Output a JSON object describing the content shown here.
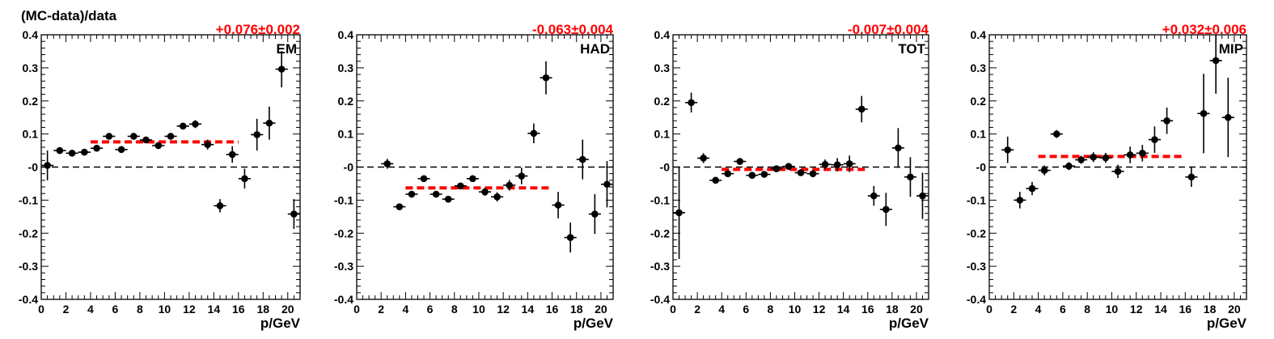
{
  "figure": {
    "ylabel": "(MC-data)/data",
    "colors": {
      "points": "#000000",
      "fit_line": "#ff0000",
      "annotation": "#ff0000",
      "zero_line": "#000000"
    }
  },
  "chart_data": [
    {
      "type": "scatter",
      "panel_label": "EM",
      "annotation": "+0.076±0.002",
      "xlabel": "p/GeV",
      "xlim": [
        0,
        21
      ],
      "ylim": [
        -0.4,
        0.4
      ],
      "x_ticks": [
        "0",
        "2",
        "4",
        "6",
        "8",
        "10",
        "12",
        "14",
        "16",
        "18",
        "20"
      ],
      "y_ticks": [
        "0.4",
        "0.3",
        "0.2",
        "0.1",
        "-0",
        "-0.1",
        "-0.2",
        "-0.3",
        "-0.4"
      ],
      "fit": {
        "value": 0.076,
        "x_range": [
          4,
          16
        ]
      },
      "points": [
        {
          "x": 0.5,
          "y": 0.005,
          "yerr": 0.045
        },
        {
          "x": 1.5,
          "y": 0.05,
          "yerr": 0.006
        },
        {
          "x": 2.5,
          "y": 0.042,
          "yerr": 0.006
        },
        {
          "x": 3.5,
          "y": 0.045,
          "yerr": 0.006
        },
        {
          "x": 4.5,
          "y": 0.057,
          "yerr": 0.006
        },
        {
          "x": 5.5,
          "y": 0.093,
          "yerr": 0.007
        },
        {
          "x": 6.5,
          "y": 0.053,
          "yerr": 0.007
        },
        {
          "x": 7.5,
          "y": 0.093,
          "yerr": 0.007
        },
        {
          "x": 8.5,
          "y": 0.082,
          "yerr": 0.007
        },
        {
          "x": 9.5,
          "y": 0.065,
          "yerr": 0.008
        },
        {
          "x": 10.5,
          "y": 0.093,
          "yerr": 0.008
        },
        {
          "x": 11.5,
          "y": 0.124,
          "yerr": 0.009
        },
        {
          "x": 12.5,
          "y": 0.13,
          "yerr": 0.012
        },
        {
          "x": 13.5,
          "y": 0.068,
          "yerr": 0.015
        },
        {
          "x": 14.5,
          "y": -0.117,
          "yerr": 0.02
        },
        {
          "x": 15.5,
          "y": 0.038,
          "yerr": 0.025
        },
        {
          "x": 16.5,
          "y": -0.035,
          "yerr": 0.03
        },
        {
          "x": 17.5,
          "y": 0.098,
          "yerr": 0.048
        },
        {
          "x": 18.5,
          "y": 0.133,
          "yerr": 0.05
        },
        {
          "x": 19.5,
          "y": 0.296,
          "yerr": 0.055
        },
        {
          "x": 20.5,
          "y": -0.142,
          "yerr": 0.045
        }
      ]
    },
    {
      "type": "scatter",
      "panel_label": "HAD",
      "annotation": "-0.063±0.004",
      "xlabel": "p/GeV",
      "xlim": [
        0,
        21
      ],
      "ylim": [
        -0.4,
        0.4
      ],
      "x_ticks": [
        "0",
        "2",
        "4",
        "6",
        "8",
        "10",
        "12",
        "14",
        "16",
        "18",
        "20"
      ],
      "y_ticks": [
        "0.4",
        "0.3",
        "0.2",
        "0.1",
        "-0",
        "-0.1",
        "-0.2",
        "-0.3",
        "-0.4"
      ],
      "fit": {
        "value": -0.063,
        "x_range": [
          4,
          16
        ]
      },
      "points": [
        {
          "x": 2.5,
          "y": 0.01,
          "yerr": 0.015
        },
        {
          "x": 3.5,
          "y": -0.12,
          "yerr": 0.008
        },
        {
          "x": 4.5,
          "y": -0.082,
          "yerr": 0.008
        },
        {
          "x": 5.5,
          "y": -0.035,
          "yerr": 0.008
        },
        {
          "x": 6.5,
          "y": -0.082,
          "yerr": 0.008
        },
        {
          "x": 7.5,
          "y": -0.097,
          "yerr": 0.008
        },
        {
          "x": 8.5,
          "y": -0.057,
          "yerr": 0.008
        },
        {
          "x": 9.5,
          "y": -0.035,
          "yerr": 0.01
        },
        {
          "x": 10.5,
          "y": -0.075,
          "yerr": 0.012
        },
        {
          "x": 11.5,
          "y": -0.09,
          "yerr": 0.014
        },
        {
          "x": 12.5,
          "y": -0.055,
          "yerr": 0.016
        },
        {
          "x": 13.5,
          "y": -0.027,
          "yerr": 0.025
        },
        {
          "x": 14.5,
          "y": 0.102,
          "yerr": 0.03
        },
        {
          "x": 15.5,
          "y": 0.27,
          "yerr": 0.05
        },
        {
          "x": 16.5,
          "y": -0.115,
          "yerr": 0.04
        },
        {
          "x": 17.5,
          "y": -0.213,
          "yerr": 0.045
        },
        {
          "x": 18.5,
          "y": 0.023,
          "yerr": 0.06
        },
        {
          "x": 19.5,
          "y": -0.142,
          "yerr": 0.06
        },
        {
          "x": 20.5,
          "y": -0.052,
          "yerr": 0.07
        }
      ]
    },
    {
      "type": "scatter",
      "panel_label": "TOT",
      "annotation": "-0.007±0.004",
      "xlabel": "p/GeV",
      "xlim": [
        0,
        21
      ],
      "ylim": [
        -0.4,
        0.4
      ],
      "x_ticks": [
        "0",
        "2",
        "4",
        "6",
        "8",
        "10",
        "12",
        "14",
        "16",
        "18",
        "20"
      ],
      "y_ticks": [
        "0.4",
        "0.3",
        "0.2",
        "0.1",
        "-0",
        "-0.1",
        "-0.2",
        "-0.3",
        "-0.4"
      ],
      "fit": {
        "value": -0.007,
        "x_range": [
          4,
          16
        ]
      },
      "points": [
        {
          "x": 0.5,
          "y": -0.138,
          "yerr": 0.14
        },
        {
          "x": 1.5,
          "y": 0.195,
          "yerr": 0.03
        },
        {
          "x": 2.5,
          "y": 0.027,
          "yerr": 0.015
        },
        {
          "x": 3.5,
          "y": -0.04,
          "yerr": 0.01
        },
        {
          "x": 4.5,
          "y": -0.02,
          "yerr": 0.008
        },
        {
          "x": 5.5,
          "y": 0.017,
          "yerr": 0.006
        },
        {
          "x": 6.5,
          "y": -0.025,
          "yerr": 0.006
        },
        {
          "x": 7.5,
          "y": -0.022,
          "yerr": 0.007
        },
        {
          "x": 8.5,
          "y": -0.005,
          "yerr": 0.007
        },
        {
          "x": 9.5,
          "y": 0.002,
          "yerr": 0.008
        },
        {
          "x": 10.5,
          "y": -0.017,
          "yerr": 0.009
        },
        {
          "x": 11.5,
          "y": -0.02,
          "yerr": 0.01
        },
        {
          "x": 12.5,
          "y": 0.008,
          "yerr": 0.015
        },
        {
          "x": 13.5,
          "y": 0.007,
          "yerr": 0.02
        },
        {
          "x": 14.5,
          "y": 0.01,
          "yerr": 0.025
        },
        {
          "x": 15.5,
          "y": 0.175,
          "yerr": 0.04
        },
        {
          "x": 16.5,
          "y": -0.087,
          "yerr": 0.03
        },
        {
          "x": 17.5,
          "y": -0.128,
          "yerr": 0.05
        },
        {
          "x": 18.5,
          "y": 0.058,
          "yerr": 0.06
        },
        {
          "x": 19.5,
          "y": -0.03,
          "yerr": 0.06
        },
        {
          "x": 20.5,
          "y": -0.087,
          "yerr": 0.07
        }
      ]
    },
    {
      "type": "scatter",
      "panel_label": "MIP",
      "annotation": "+0.032±0.006",
      "xlabel": "p/GeV",
      "xlim": [
        0,
        21
      ],
      "ylim": [
        -0.4,
        0.4
      ],
      "x_ticks": [
        "0",
        "2",
        "4",
        "6",
        "8",
        "10",
        "12",
        "14",
        "16",
        "18",
        "20"
      ],
      "y_ticks": [
        "0.4",
        "0.3",
        "0.2",
        "0.1",
        "-0",
        "-0.1",
        "-0.2",
        "-0.3",
        "-0.4"
      ],
      "fit": {
        "value": 0.032,
        "x_range": [
          4,
          16
        ]
      },
      "points": [
        {
          "x": 1.5,
          "y": 0.052,
          "yerr": 0.04
        },
        {
          "x": 2.5,
          "y": -0.1,
          "yerr": 0.025
        },
        {
          "x": 3.5,
          "y": -0.065,
          "yerr": 0.02
        },
        {
          "x": 4.5,
          "y": -0.01,
          "yerr": 0.015
        },
        {
          "x": 5.5,
          "y": 0.1,
          "yerr": 0.012
        },
        {
          "x": 6.5,
          "y": 0.003,
          "yerr": 0.012
        },
        {
          "x": 7.5,
          "y": 0.022,
          "yerr": 0.012
        },
        {
          "x": 8.5,
          "y": 0.03,
          "yerr": 0.015
        },
        {
          "x": 9.5,
          "y": 0.028,
          "yerr": 0.015
        },
        {
          "x": 10.5,
          "y": -0.013,
          "yerr": 0.02
        },
        {
          "x": 11.5,
          "y": 0.037,
          "yerr": 0.025
        },
        {
          "x": 12.5,
          "y": 0.042,
          "yerr": 0.025
        },
        {
          "x": 13.5,
          "y": 0.083,
          "yerr": 0.04
        },
        {
          "x": 14.5,
          "y": 0.14,
          "yerr": 0.04
        },
        {
          "x": 16.5,
          "y": -0.03,
          "yerr": 0.03
        },
        {
          "x": 17.5,
          "y": 0.162,
          "yerr": 0.12
        },
        {
          "x": 18.5,
          "y": 0.322,
          "yerr": 0.1
        },
        {
          "x": 19.5,
          "y": 0.15,
          "yerr": 0.12
        }
      ]
    }
  ]
}
